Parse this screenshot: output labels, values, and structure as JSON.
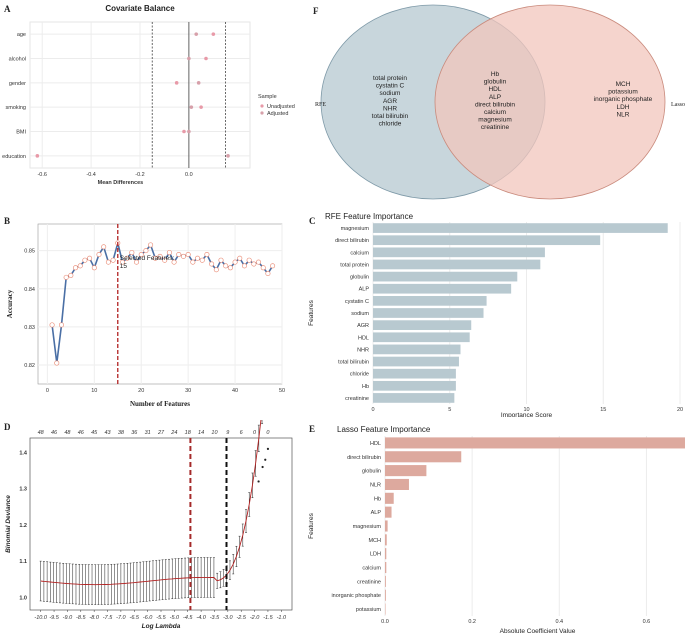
{
  "panels": {
    "A": {
      "label": "A",
      "chart_data": {
        "type": "scatter",
        "title": "Covariate Balance",
        "xlabel": "Mean Differences",
        "ylabel": "",
        "categories": [
          "age",
          "alcohol",
          "gender",
          "smoking",
          "BMI",
          "education"
        ],
        "xlim": [
          -0.65,
          0.25
        ],
        "xticks": [
          -0.6,
          -0.4,
          -0.2,
          0.0
        ],
        "xtick_labels": [
          "-0.6",
          "-0.4",
          "-0.2",
          "0.0"
        ],
        "thresholds": [
          -0.15,
          0.0,
          0.15
        ],
        "series": [
          {
            "name": "Unadjusted",
            "color": "#e89aa8",
            "values": [
              0.1,
              0.07,
              -0.05,
              0.05,
              -0.02,
              -0.62
            ]
          },
          {
            "name": "Adjusted",
            "color": "#d7a0aa",
            "values": [
              0.03,
              0.0,
              0.04,
              0.01,
              0.0,
              0.16
            ]
          }
        ],
        "legend": {
          "title": "Sample",
          "entries": [
            "Unadjusted",
            "Adjusted"
          ],
          "placement": "right"
        }
      }
    },
    "B": {
      "label": "B",
      "chart_data": {
        "type": "line",
        "title": "",
        "xlabel": "Number of Features",
        "ylabel": "Accuracy",
        "xlim": [
          -2,
          50
        ],
        "ylim": [
          0.815,
          0.857
        ],
        "xticks": [
          0,
          10,
          20,
          30,
          40,
          50
        ],
        "yticks": [
          0.82,
          0.83,
          0.84,
          0.85
        ],
        "ytick_labels": [
          "0.82",
          "0.83",
          "0.84",
          "0.85"
        ],
        "x": [
          1,
          2,
          3,
          4,
          5,
          6,
          7,
          8,
          9,
          10,
          11,
          12,
          13,
          14,
          15,
          16,
          17,
          18,
          19,
          20,
          21,
          22,
          23,
          24,
          25,
          26,
          27,
          28,
          29,
          30,
          31,
          32,
          33,
          34,
          35,
          36,
          37,
          38,
          39,
          40,
          41,
          42,
          43,
          44,
          45,
          46,
          47,
          48
        ],
        "y": [
          0.8305,
          0.8205,
          0.8305,
          0.843,
          0.8435,
          0.8455,
          0.846,
          0.8475,
          0.848,
          0.8455,
          0.849,
          0.851,
          0.847,
          0.8475,
          0.852,
          0.847,
          0.848,
          0.8495,
          0.847,
          0.849,
          0.85,
          0.8515,
          0.848,
          0.8485,
          0.8475,
          0.8495,
          0.847,
          0.849,
          0.8485,
          0.849,
          0.847,
          0.848,
          0.8475,
          0.849,
          0.8465,
          0.845,
          0.8475,
          0.846,
          0.8455,
          0.847,
          0.848,
          0.846,
          0.8475,
          0.8465,
          0.847,
          0.8455,
          0.844,
          0.846
        ],
        "line_color": "#4a6fa5",
        "marker_color": "#e8836b",
        "vline": {
          "x": 15,
          "color": "#b22222"
        },
        "annotation": [
          "Selected Features:",
          "15"
        ]
      }
    },
    "C": {
      "label": "C",
      "chart_data": {
        "type": "bar",
        "orientation": "horizontal",
        "title": "RFE Feature Importance",
        "xlabel": "Importance Score",
        "ylabel": "Features",
        "categories": [
          "magnesium",
          "direct bilirubin",
          "calcium",
          "total protein",
          "globulin",
          "ALP",
          "cystatin C",
          "sodium",
          "AGR",
          "HDL",
          "NHR",
          "total bilirubin",
          "chloride",
          "Hb",
          "creatinine"
        ],
        "values": [
          19.2,
          14.8,
          11.2,
          10.9,
          9.4,
          9.0,
          7.4,
          7.2,
          6.4,
          6.3,
          5.7,
          5.6,
          5.4,
          5.4,
          5.3
        ],
        "xlim": [
          0,
          20
        ],
        "xticks": [
          0,
          5,
          10,
          15,
          20
        ],
        "bar_color": "#b8c9d0"
      }
    },
    "D": {
      "label": "D",
      "chart_data": {
        "type": "line",
        "title": "",
        "xlabel": "Log Lambda",
        "ylabel": "Binomial Deviance",
        "xlim": [
          -10.4,
          -0.6
        ],
        "ylim": [
          0.965,
          1.44
        ],
        "xticks": [
          -10.0,
          -9.5,
          -9.0,
          -8.5,
          -8.0,
          -7.5,
          -7.0,
          -6.5,
          -6.0,
          -5.5,
          -5.0,
          -4.5,
          -4.0,
          -3.5,
          -3.0,
          -2.5,
          -2.0,
          -1.5,
          -1.0
        ],
        "xtick_labels": [
          "-10.0",
          "-9.5",
          "-9.0",
          "-8.5",
          "-8.0",
          "-7.5",
          "-7.0",
          "-6.5",
          "-6.0",
          "-5.5",
          "-5.0",
          "-4.5",
          "-4.0",
          "-3.5",
          "-3.0",
          "-2.5",
          "-2.0",
          "-1.5",
          "-1.0"
        ],
        "yticks": [
          1.0,
          1.1,
          1.2,
          1.3,
          1.4
        ],
        "ytick_labels": [
          "1.0",
          "1.1",
          "1.2",
          "1.3",
          "1.4"
        ],
        "top_axis_labels": [
          "48",
          "46",
          "48",
          "46",
          "45",
          "43",
          "38",
          "36",
          "31",
          "27",
          "24",
          "18",
          "14",
          "10",
          "9",
          "6",
          "0",
          "0"
        ],
        "lambda_min": -4.4,
        "lambda_1se": -3.05,
        "vline_colors": [
          "#a52a2a",
          "#111111"
        ],
        "mean_color": "#b22222"
      }
    },
    "E": {
      "label": "E",
      "chart_data": {
        "type": "bar",
        "orientation": "horizontal",
        "title": "Lasso Feature Importance",
        "xlabel": "Absolute Coefficient Value",
        "ylabel": "Features",
        "categories": [
          "HDL",
          "direct bilirubin",
          "globulin",
          "NLR",
          "Hb",
          "ALP",
          "magnesium",
          "MCH",
          "LDH",
          "calcium",
          "creatinine",
          "inorganic phosphate",
          "potassium"
        ],
        "values": [
          0.69,
          0.175,
          0.095,
          0.055,
          0.02,
          0.015,
          0.006,
          0.004,
          0.003,
          0.003,
          0.002,
          0.002,
          0.001
        ],
        "xlim": [
          0,
          0.7
        ],
        "xticks": [
          0.0,
          0.2,
          0.4,
          0.6
        ],
        "xtick_labels": [
          "0.0",
          "0.2",
          "0.4",
          "0.6"
        ],
        "bar_color": "#dda99e"
      }
    },
    "F": {
      "label": "F",
      "chart_data": {
        "type": "venn",
        "sets": [
          {
            "name": "RFE",
            "only": [
              "total protein",
              "cystatin C",
              "sodium",
              "AGR",
              "NHR",
              "total bilirubin",
              "chloride"
            ],
            "fill": "#c8d6dc"
          },
          {
            "name": "Lasso",
            "only": [
              "MCH",
              "potassium",
              "inorganic phosphate",
              "LDH",
              "NLR"
            ],
            "fill": "#f2c6bc"
          }
        ],
        "intersection": [
          "Hb",
          "globulin",
          "HDL",
          "ALP",
          "direct bilirubin",
          "calcium",
          "magnesium",
          "creatinine"
        ]
      }
    }
  }
}
